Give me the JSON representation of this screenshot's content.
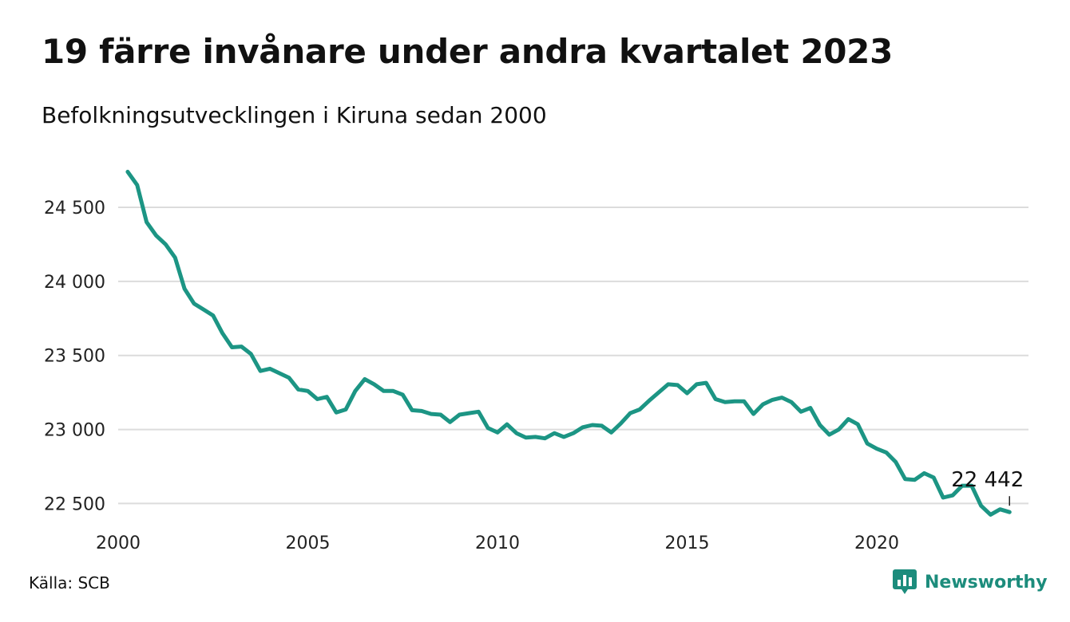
{
  "header": {
    "title": "19 färre invånare under andra kvartalet 2023",
    "subtitle": "Befolkningsutvecklingen i Kiruna sedan 2000"
  },
  "footer": {
    "source": "Källa: SCB",
    "brand": "Newsworthy",
    "brand_icon": "bar-chart-speech-icon"
  },
  "colors": {
    "line": "#1c9584",
    "grid": "#dcdcdc",
    "brand": "#1c8c7c"
  },
  "chart_data": {
    "type": "line",
    "title": "19 färre invånare under andra kvartalet 2023",
    "subtitle": "Befolkningsutvecklingen i Kiruna sedan 2000",
    "xlabel": "",
    "ylabel": "",
    "grid": true,
    "legend": "none",
    "xlim": [
      2000,
      2024
    ],
    "ylim": [
      22400,
      24780
    ],
    "x_ticks": [
      2000,
      2005,
      2010,
      2015,
      2020
    ],
    "x_tick_labels": [
      "2000",
      "2005",
      "2010",
      "2015",
      "2020"
    ],
    "y_ticks": [
      22500,
      23000,
      23500,
      24000,
      24500
    ],
    "y_tick_labels": [
      "22 500",
      "23 000",
      "23 500",
      "24 000",
      "24 500"
    ],
    "annotation": {
      "x": 2023.5,
      "y": 22442,
      "label": "22 442"
    },
    "series": [
      {
        "x": [
          2000.25,
          2000.5,
          2000.75,
          2001.0,
          2001.25,
          2001.5,
          2001.75,
          2002.0,
          2002.25,
          2002.5,
          2002.75,
          2003.0,
          2003.25,
          2003.5,
          2003.75,
          2004.0,
          2004.25,
          2004.5,
          2004.75,
          2005.0,
          2005.25,
          2005.5,
          2005.75,
          2006.0,
          2006.25,
          2006.5,
          2006.75,
          2007.0,
          2007.25,
          2007.5,
          2007.75,
          2008.0,
          2008.25,
          2008.5,
          2008.75,
          2009.0,
          2009.25,
          2009.5,
          2009.75,
          2010.0,
          2010.25,
          2010.5,
          2010.75,
          2011.0,
          2011.25,
          2011.5,
          2011.75,
          2012.0,
          2012.25,
          2012.5,
          2012.75,
          2013.0,
          2013.25,
          2013.5,
          2013.75,
          2014.0,
          2014.25,
          2014.5,
          2014.75,
          2015.0,
          2015.25,
          2015.5,
          2015.75,
          2016.0,
          2016.25,
          2016.5,
          2016.75,
          2017.0,
          2017.25,
          2017.5,
          2017.75,
          2018.0,
          2018.25,
          2018.5,
          2018.75,
          2019.0,
          2019.25,
          2019.5,
          2019.75,
          2020.0,
          2020.25,
          2020.5,
          2020.75,
          2021.0,
          2021.25,
          2021.5,
          2021.75,
          2022.0,
          2022.25,
          2022.5,
          2022.75,
          2023.0,
          2023.25,
          2023.5
        ],
        "values": [
          24740,
          24650,
          24400,
          24310,
          24250,
          24160,
          23950,
          23850,
          23810,
          23770,
          23650,
          23555,
          23560,
          23510,
          23395,
          23410,
          23380,
          23350,
          23270,
          23260,
          23205,
          23220,
          23115,
          23135,
          23260,
          23340,
          23305,
          23260,
          23260,
          23235,
          23130,
          23125,
          23105,
          23100,
          23050,
          23100,
          23110,
          23120,
          23010,
          22980,
          23035,
          22975,
          22945,
          22950,
          22940,
          22975,
          22950,
          22975,
          23015,
          23030,
          23025,
          22980,
          23040,
          23110,
          23135,
          23195,
          23250,
          23305,
          23300,
          23245,
          23305,
          23315,
          23205,
          23185,
          23190,
          23190,
          23105,
          23170,
          23200,
          23215,
          23185,
          23120,
          23145,
          23030,
          22965,
          23000,
          23070,
          23035,
          22905,
          22870,
          22845,
          22780,
          22665,
          22660,
          22705,
          22675,
          22540,
          22555,
          22620,
          22620,
          22485,
          22425,
          22461,
          22442
        ]
      }
    ]
  }
}
